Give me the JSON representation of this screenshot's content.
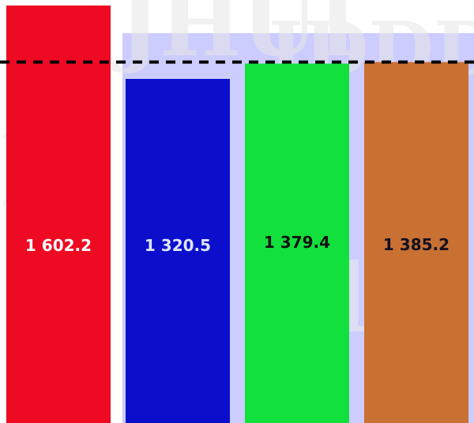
{
  "chart_data": {
    "type": "bar",
    "title": "",
    "xlabel": "",
    "ylabel": "",
    "categories": [
      "",
      "",
      "",
      ""
    ],
    "values": [
      1602.2,
      1320.5,
      1379.4,
      1385.2
    ],
    "value_labels": [
      "1 602.2",
      "1 320.5",
      "1 379.4",
      "1 385.2"
    ],
    "bar_colors": [
      "#ee0a22",
      "#0b0fcc",
      "#12e03c",
      "#c97033"
    ],
    "label_colors": [
      "#ffffff",
      "#dfe4ff",
      "#111111",
      "#111122"
    ],
    "reference_line": {
      "value": 1385.2,
      "style": "dashed",
      "color": "#000000"
    },
    "grid": false,
    "legend": "none"
  },
  "background": {
    "band_color": "#ccccff",
    "watermark_color": "#e4e4e4"
  }
}
